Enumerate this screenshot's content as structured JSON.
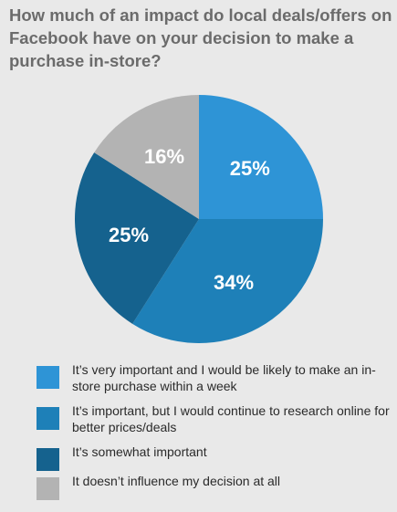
{
  "chart_data": {
    "type": "pie",
    "title": "How much of an impact do local deals/offers on Facebook have on your decision to make a purchase in-store?",
    "slices": [
      {
        "label": "It’s very important and I would be likely to make an in-store purchase within a week",
        "value": 25,
        "display": "25%",
        "color": "#2e94d6"
      },
      {
        "label": "It’s important, but I would continue to research online for better prices/deals",
        "value": 34,
        "display": "34%",
        "color": "#1e80b8"
      },
      {
        "label": "It’s somewhat important",
        "value": 25,
        "display": "25%",
        "color": "#15628e"
      },
      {
        "label": "It doesn’t influence my decision at all",
        "value": 16,
        "display": "16%",
        "color": "#b3b3b3"
      }
    ],
    "start_angle": "12 o'clock, clockwise"
  }
}
